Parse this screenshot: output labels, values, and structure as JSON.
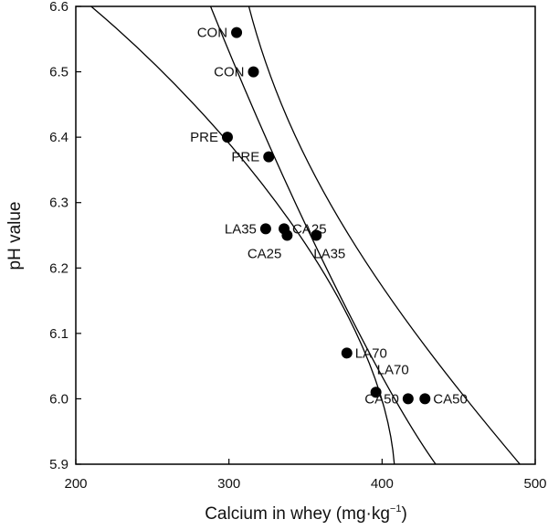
{
  "chart_data": {
    "type": "scatter",
    "xlabel": "Calcium in whey (mg·kg⁻¹)",
    "xlabel_main": "Calcium in whey (mg·kg",
    "xlabel_sup": "−1",
    "xlabel_close": ")",
    "ylabel": "pH value",
    "xlim": [
      200,
      500
    ],
    "ylim": [
      5.9,
      6.6
    ],
    "x_ticks": [
      "200",
      "300",
      "400",
      "500"
    ],
    "y_ticks": [
      "5.9",
      "6.0",
      "6.1",
      "6.2",
      "6.3",
      "6.4",
      "6.5",
      "6.6"
    ],
    "grid": false,
    "marker_color": "#000000",
    "points": [
      {
        "label": "CON",
        "x": 305,
        "y": 6.56,
        "label_side": "left"
      },
      {
        "label": "CON",
        "x": 316,
        "y": 6.5,
        "label_side": "left"
      },
      {
        "label": "PRE",
        "x": 299,
        "y": 6.4,
        "label_side": "left"
      },
      {
        "label": "PRE",
        "x": 326,
        "y": 6.37,
        "label_side": "left"
      },
      {
        "label": "LA35",
        "x": 324,
        "y": 6.26,
        "label_side": "left"
      },
      {
        "label": "CA25",
        "x": 336,
        "y": 6.26,
        "label_side": "right"
      },
      {
        "label": "CA25",
        "x": 338,
        "y": 6.25,
        "label_side": "below-left"
      },
      {
        "label": "LA35",
        "x": 357,
        "y": 6.25,
        "label_side": "below-right"
      },
      {
        "label": "LA70",
        "x": 377,
        "y": 6.07,
        "label_side": "right"
      },
      {
        "label": "LA70",
        "x": 396,
        "y": 6.01,
        "label_side": "above-right"
      },
      {
        "label": "CA50",
        "x": 417,
        "y": 6.0,
        "label_side": "left"
      },
      {
        "label": "CA50",
        "x": 428,
        "y": 6.0,
        "label_side": "right"
      }
    ],
    "fit_lines": [
      {
        "points": [
          [
            210,
            6.6
          ],
          [
            300,
            6.422
          ],
          [
            400,
            6.136
          ],
          [
            408,
            5.9
          ]
        ]
      },
      {
        "points": [
          [
            288,
            6.6
          ],
          [
            340,
            6.297
          ],
          [
            400,
            6.015
          ],
          [
            435,
            5.9
          ]
        ]
      },
      {
        "points": [
          [
            313,
            6.6
          ],
          [
            340,
            6.355
          ],
          [
            400,
            6.15
          ],
          [
            490,
            5.9
          ]
        ]
      }
    ]
  }
}
